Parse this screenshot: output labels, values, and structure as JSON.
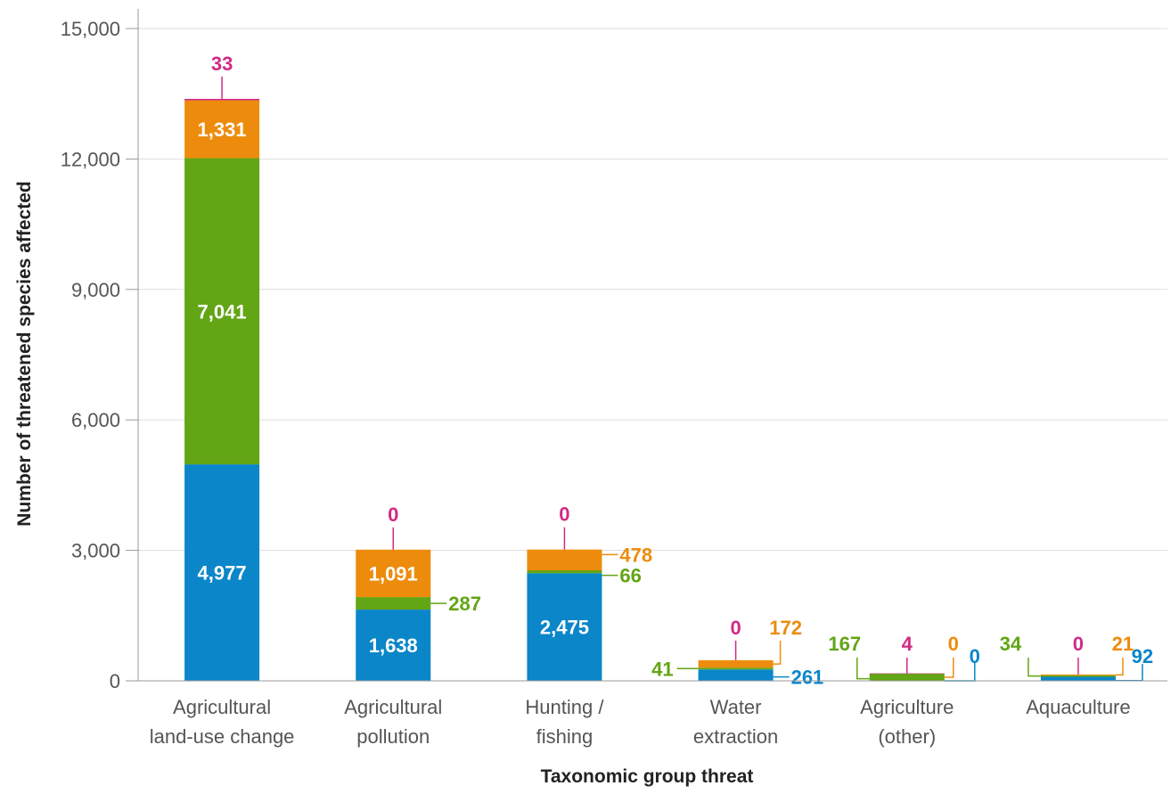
{
  "chart_data": {
    "type": "bar",
    "stacked": true,
    "xlabel": "Taxonomic group threat",
    "ylabel": "Number of threatened species affected",
    "ylim": [
      0,
      15000
    ],
    "yticks": [
      0,
      3000,
      6000,
      9000,
      12000,
      15000
    ],
    "ytick_labels": [
      "0",
      "3,000",
      "6,000",
      "9,000",
      "12,000",
      "15,000"
    ],
    "grid": true,
    "legend": "none",
    "categories": [
      [
        "Agricultural",
        "land-use change"
      ],
      [
        "Agricultural",
        "pollution"
      ],
      [
        "Hunting /",
        "fishing"
      ],
      [
        "Water",
        "extraction"
      ],
      [
        "Agriculture",
        "(other)"
      ],
      [
        "Aquaculture"
      ]
    ],
    "series": [
      {
        "color": "#0a86c9",
        "values": [
          4977,
          1638,
          2475,
          261,
          0,
          92
        ],
        "labels": [
          "4,977",
          "1,638",
          "2,475",
          "261",
          "0",
          "92"
        ]
      },
      {
        "color": "#62a515",
        "values": [
          7041,
          287,
          66,
          41,
          167,
          34
        ],
        "labels": [
          "7,041",
          "287",
          "66",
          "41",
          "167",
          "34"
        ]
      },
      {
        "color": "#ed8c0c",
        "values": [
          1331,
          1091,
          478,
          172,
          0,
          21
        ],
        "labels": [
          "1,331",
          "1,091",
          "478",
          "172",
          "0",
          "21"
        ]
      },
      {
        "color": "#d12a85",
        "values": [
          33,
          0,
          0,
          0,
          4,
          0
        ],
        "labels": [
          "33",
          "0",
          "0",
          "0",
          "4",
          "0"
        ]
      }
    ]
  }
}
